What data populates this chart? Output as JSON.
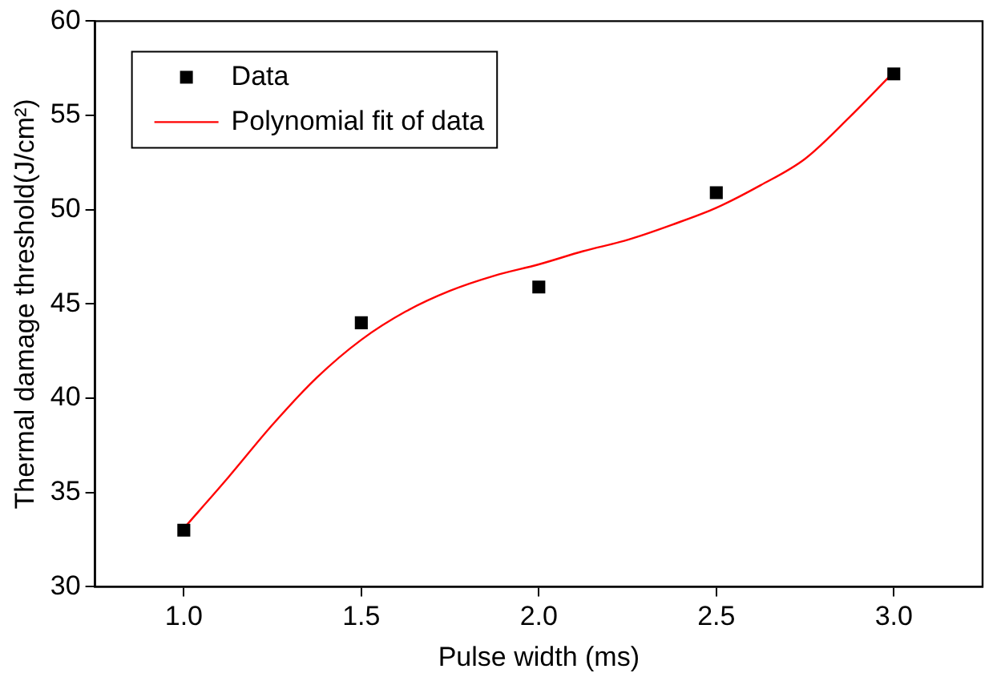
{
  "chart_data": {
    "type": "scatter",
    "xlabel": "Pulse width (ms)",
    "ylabel": "Thermal damage threshold(J/cm²)",
    "xlim": [
      0.75,
      3.25
    ],
    "xticks": [
      {
        "value": 1,
        "label": "1.0"
      },
      1.5,
      {
        "value": 2,
        "label": "2.0"
      },
      2.5,
      {
        "value": 3,
        "label": "3.0"
      }
    ],
    "ylim": [
      30,
      60
    ],
    "yticks": [
      30,
      35,
      40,
      45,
      50,
      55,
      60
    ],
    "grid": false,
    "legend": "top left",
    "series": [
      {
        "name": "Data",
        "marker": "square",
        "color": "#000000",
        "x": [
          1,
          1.5,
          2,
          2.5,
          3
        ],
        "values": [
          33.0,
          44.0,
          45.9,
          50.9,
          57.2
        ]
      },
      {
        "name": "Polynomial fit of data",
        "type": "line",
        "marker": "none",
        "color": "#ff0000",
        "x": [
          1,
          1.125,
          1.25,
          1.375,
          1.5,
          1.625,
          1.75,
          1.875,
          2,
          2.125,
          2.25,
          2.375,
          2.5,
          2.625,
          2.75,
          2.875,
          3
        ],
        "values": [
          33.1,
          35.8,
          38.6,
          41.1,
          43.1,
          44.6,
          45.7,
          46.5,
          47.1,
          47.8,
          48.4,
          49.2,
          50.1,
          51.3,
          52.7,
          54.9,
          57.3
        ]
      }
    ]
  }
}
